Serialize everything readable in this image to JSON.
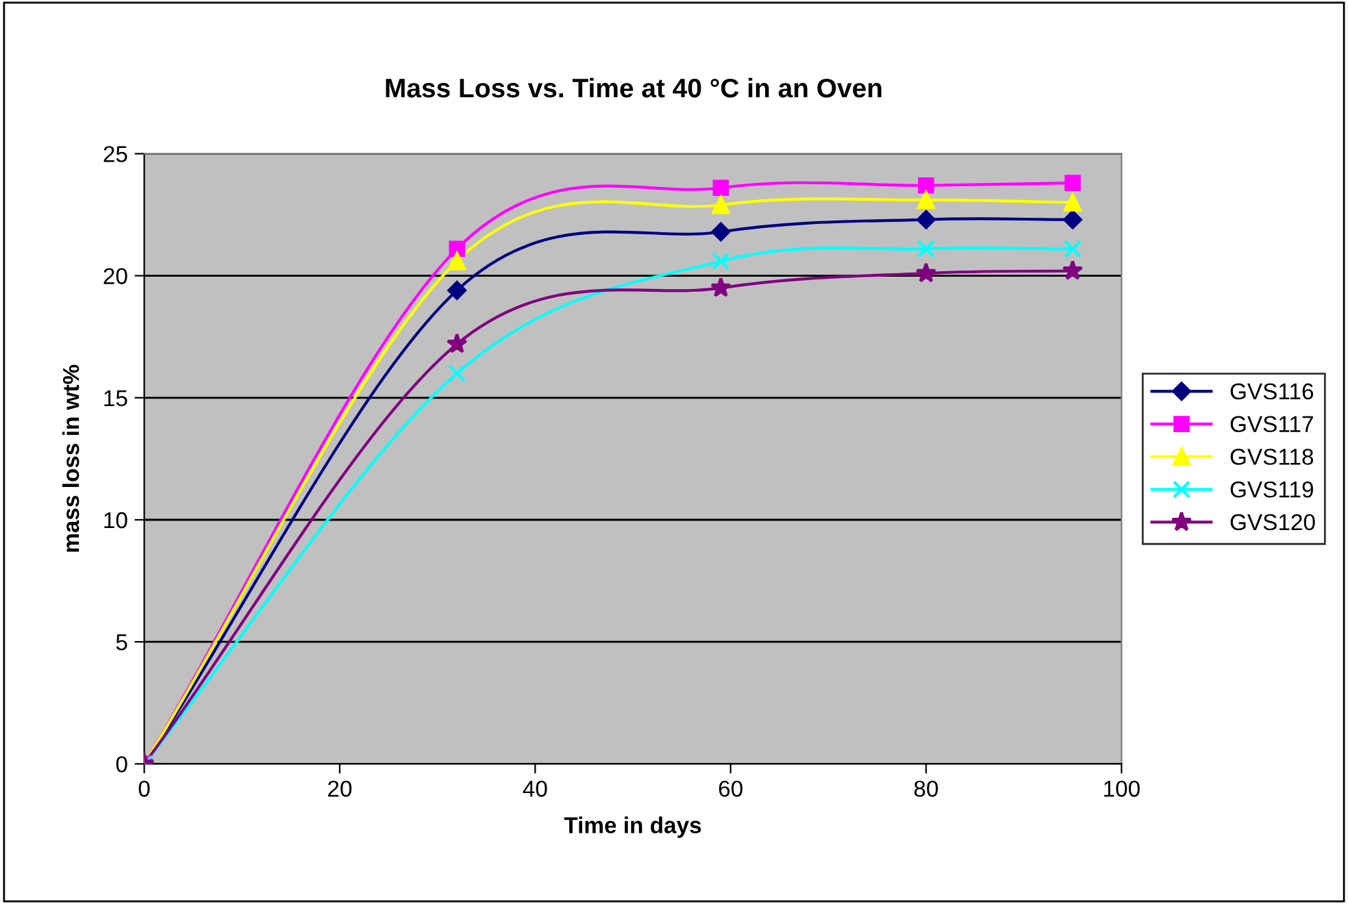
{
  "chart_data": {
    "type": "line",
    "title": "Mass Loss vs. Time at 40 °C in an Oven",
    "xlabel": "Time in days",
    "ylabel": "mass loss in wt%",
    "x": [
      0,
      32,
      59,
      80,
      95
    ],
    "series": [
      {
        "name": "GVS116",
        "color": "#000080",
        "marker": "diamond",
        "values": [
          0,
          19.4,
          21.8,
          22.3,
          22.3
        ]
      },
      {
        "name": "GVS117",
        "color": "#ff00ff",
        "marker": "square",
        "values": [
          0,
          21.1,
          23.6,
          23.7,
          23.8
        ]
      },
      {
        "name": "GVS118",
        "color": "#ffff00",
        "marker": "triangle",
        "values": [
          0,
          20.6,
          22.9,
          23.1,
          23.0
        ]
      },
      {
        "name": "GVS119",
        "color": "#00ffff",
        "marker": "cross",
        "values": [
          0,
          16.0,
          20.6,
          21.1,
          21.1
        ]
      },
      {
        "name": "GVS120",
        "color": "#800080",
        "marker": "star",
        "values": [
          0,
          17.2,
          19.5,
          20.1,
          20.2
        ]
      }
    ],
    "xlim": [
      0,
      100
    ],
    "xticks": [
      0,
      20,
      40,
      60,
      80,
      100
    ],
    "ylim": [
      0,
      25
    ],
    "yticks": [
      0,
      5,
      10,
      15,
      20,
      25
    ],
    "grid": "y",
    "legend": "right",
    "line_style": "solid"
  }
}
